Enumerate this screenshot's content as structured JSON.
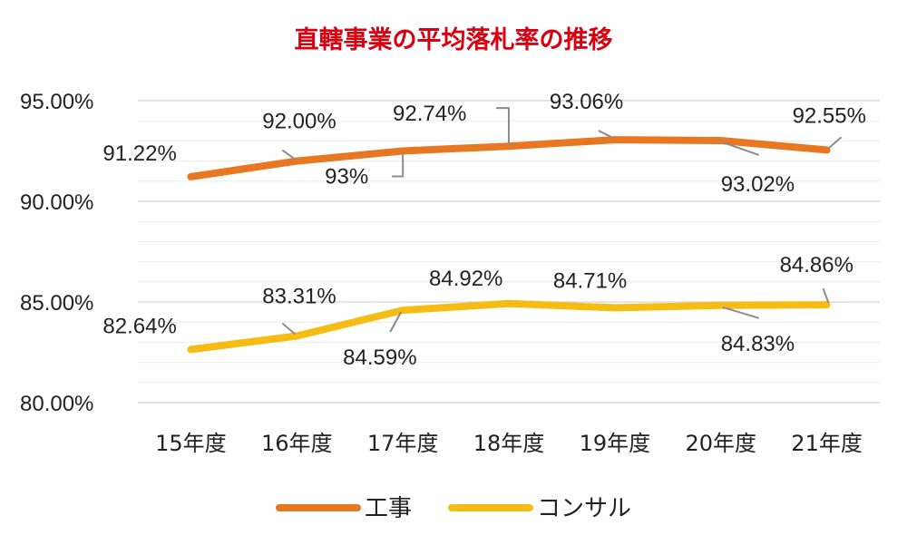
{
  "chart_data": {
    "type": "line",
    "title": "直轄事業の平均落札率の推移",
    "categories": [
      "15年度",
      "16年度",
      "17年度",
      "18年度",
      "19年度",
      "20年度",
      "21年度"
    ],
    "ylim": [
      80,
      95
    ],
    "yticks": [
      "95.00%",
      "90.00%",
      "85.00%",
      "80.00%"
    ],
    "ytick_values": [
      95,
      90,
      85,
      80
    ],
    "grid": true,
    "legend": "bottom",
    "series": [
      {
        "name": "工事",
        "color": "#e87722",
        "values": [
          91.22,
          92.0,
          92.5,
          92.74,
          93.06,
          93.02,
          92.55
        ],
        "labels": [
          "91.22%",
          "92.00%",
          "93%",
          "92.74%",
          "93.06%",
          "93.02%",
          "92.55%"
        ]
      },
      {
        "name": "コンサル",
        "color": "#f5bd14",
        "values": [
          82.64,
          83.31,
          84.59,
          84.92,
          84.71,
          84.83,
          84.86
        ],
        "labels": [
          "82.64%",
          "83.31%",
          "84.59%",
          "84.92%",
          "84.71%",
          "84.83%",
          "84.86%"
        ]
      }
    ]
  }
}
